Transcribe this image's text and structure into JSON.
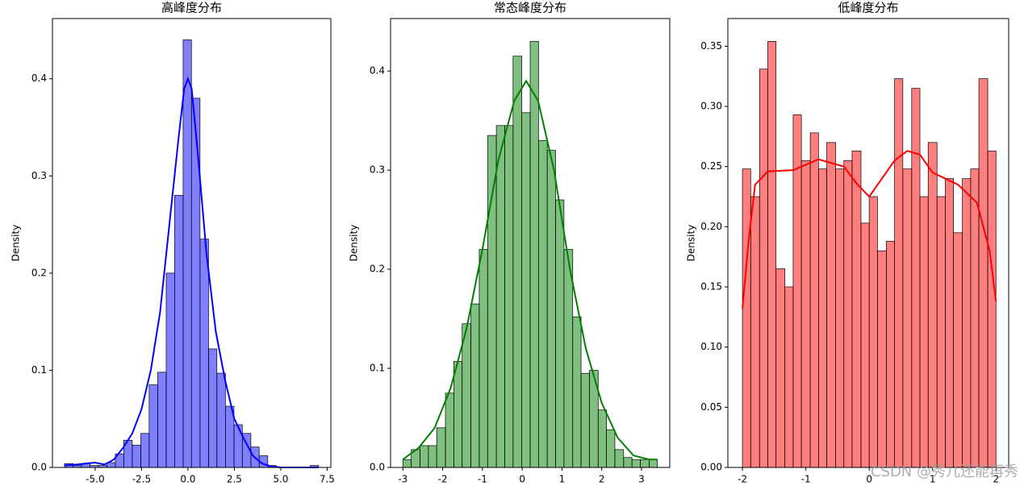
{
  "chart_data": [
    {
      "type": "histogram",
      "title": "高峰度分布",
      "ylabel": "Density",
      "color": "#0000ff",
      "bins": [
        -6.65,
        -6.19,
        -5.74,
        -5.28,
        -4.83,
        -4.37,
        -3.91,
        -3.46,
        -3.0,
        -2.54,
        -2.09,
        -1.63,
        -1.17,
        -0.72,
        -0.26,
        0.19,
        0.65,
        1.11,
        1.56,
        2.02,
        2.48,
        2.93,
        3.39,
        3.84,
        4.3,
        4.76,
        5.21,
        5.67,
        6.13,
        6.58,
        7.04
      ],
      "values": [
        0.004,
        0.002,
        0.004,
        0.002,
        0.002,
        0.005,
        0.014,
        0.028,
        0.023,
        0.035,
        0.085,
        0.098,
        0.2,
        0.28,
        0.44,
        0.38,
        0.235,
        0.122,
        0.097,
        0.063,
        0.044,
        0.035,
        0.021,
        0.012,
        0.002,
        0,
        0,
        0,
        0,
        0.002
      ],
      "kde": {
        "x": [
          -6.65,
          -6,
          -5.5,
          -5,
          -4.5,
          -4,
          -3.5,
          -3,
          -2.5,
          -2,
          -1.5,
          -1,
          -0.5,
          -0.2,
          0,
          0.2,
          0.5,
          1,
          1.5,
          2,
          2.5,
          3,
          3.5,
          4,
          4.5,
          5,
          6,
          7.04
        ],
        "values": [
          0.002,
          0.003,
          0.004,
          0.005,
          0.003,
          0.008,
          0.02,
          0.035,
          0.06,
          0.1,
          0.16,
          0.25,
          0.34,
          0.39,
          0.4,
          0.39,
          0.33,
          0.22,
          0.14,
          0.09,
          0.05,
          0.03,
          0.012,
          0.004,
          0.001,
          0,
          0,
          0
        ]
      },
      "xlim": [
        -7.3,
        7.7
      ],
      "ylim": [
        0,
        0.462
      ],
      "xticks": [
        {
          "value": -5,
          "label": "-5.0"
        },
        {
          "value": -2.5,
          "label": "-2.5"
        },
        {
          "value": 0,
          "label": "0.0"
        },
        {
          "value": 2.5,
          "label": "2.5"
        },
        {
          "value": 5,
          "label": "5.0"
        },
        {
          "value": 7.5,
          "label": "7.5"
        }
      ],
      "yticks": [
        {
          "value": 0,
          "label": "0.0"
        },
        0.1,
        0.2,
        0.3,
        0.4
      ]
    },
    {
      "type": "histogram",
      "title": "常态峰度分布",
      "ylabel": "Density",
      "color": "#008000",
      "bins": [
        -3,
        -2.79,
        -2.57,
        -2.36,
        -2.15,
        -1.93,
        -1.72,
        -1.51,
        -1.29,
        -1.08,
        -0.87,
        -0.65,
        -0.44,
        -0.23,
        -0.01,
        0.2,
        0.41,
        0.63,
        0.84,
        1.05,
        1.27,
        1.48,
        1.69,
        1.91,
        2.12,
        2.33,
        2.55,
        2.76,
        2.97,
        3.19,
        3.4
      ],
      "values": [
        0.008,
        0.018,
        0.022,
        0.022,
        0.04,
        0.075,
        0.107,
        0.145,
        0.165,
        0.22,
        0.335,
        0.345,
        0.345,
        0.415,
        0.358,
        0.43,
        0.33,
        0.32,
        0.27,
        0.22,
        0.152,
        0.095,
        0.098,
        0.058,
        0.038,
        0.018,
        0.01,
        0.008,
        0.008,
        0.008
      ],
      "kde": {
        "x": [
          -3,
          -2.6,
          -2.2,
          -1.8,
          -1.4,
          -1,
          -0.6,
          -0.2,
          0.1,
          0.4,
          0.8,
          1.2,
          1.6,
          2,
          2.4,
          2.8,
          3.2,
          3.4
        ],
        "values": [
          0.008,
          0.02,
          0.04,
          0.08,
          0.14,
          0.22,
          0.31,
          0.37,
          0.39,
          0.37,
          0.3,
          0.2,
          0.12,
          0.065,
          0.03,
          0.012,
          0.008,
          0.008
        ]
      },
      "xlim": [
        -3.31,
        3.71
      ],
      "ylim": [
        0,
        0.453
      ],
      "xticks": [
        -3,
        -2,
        -1,
        0,
        1,
        2,
        3
      ],
      "yticks": [
        {
          "value": 0,
          "label": "0.0"
        },
        0.1,
        0.2,
        0.3,
        0.4
      ]
    },
    {
      "type": "histogram",
      "title": "低峰度分布",
      "ylabel": "Density",
      "color": "#ff0000",
      "bins": [
        -2,
        -1.87,
        -1.73,
        -1.6,
        -1.47,
        -1.33,
        -1.2,
        -1.07,
        -0.93,
        -0.8,
        -0.67,
        -0.53,
        -0.4,
        -0.27,
        -0.13,
        0,
        0.13,
        0.27,
        0.4,
        0.53,
        0.67,
        0.8,
        0.93,
        1.07,
        1.2,
        1.33,
        1.47,
        1.6,
        1.73,
        1.87,
        2
      ],
      "values": [
        0.248,
        0.225,
        0.331,
        0.354,
        0.165,
        0.15,
        0.293,
        0.255,
        0.278,
        0.248,
        0.27,
        0.248,
        0.255,
        0.263,
        0.203,
        0.225,
        0.18,
        0.188,
        0.323,
        0.248,
        0.315,
        0.225,
        0.27,
        0.225,
        0.24,
        0.195,
        0.24,
        0.248,
        0.323,
        0.263
      ],
      "kde": {
        "x": [
          -2,
          -1.9,
          -1.8,
          -1.6,
          -1.2,
          -0.8,
          -0.4,
          -0.2,
          0,
          0.2,
          0.4,
          0.6,
          0.8,
          1,
          1.4,
          1.7,
          1.9,
          2
        ],
        "values": [
          0.132,
          0.19,
          0.235,
          0.246,
          0.247,
          0.256,
          0.25,
          0.236,
          0.225,
          0.24,
          0.255,
          0.263,
          0.26,
          0.245,
          0.235,
          0.22,
          0.18,
          0.138
        ]
      },
      "xlim": [
        -2.23,
        2.2
      ],
      "ylim": [
        0,
        0.373
      ],
      "xticks": [
        -2,
        -1,
        0,
        1,
        2
      ],
      "yticks": [
        {
          "value": 0,
          "label": "0.00"
        },
        0.05,
        {
          "value": 0.1,
          "label": "0.10"
        },
        0.15,
        {
          "value": 0.2,
          "label": "0.20"
        },
        0.25,
        {
          "value": 0.3,
          "label": "0.30"
        },
        0.35
      ]
    }
  ],
  "watermark": "CSDN @秀儿还能再秀"
}
